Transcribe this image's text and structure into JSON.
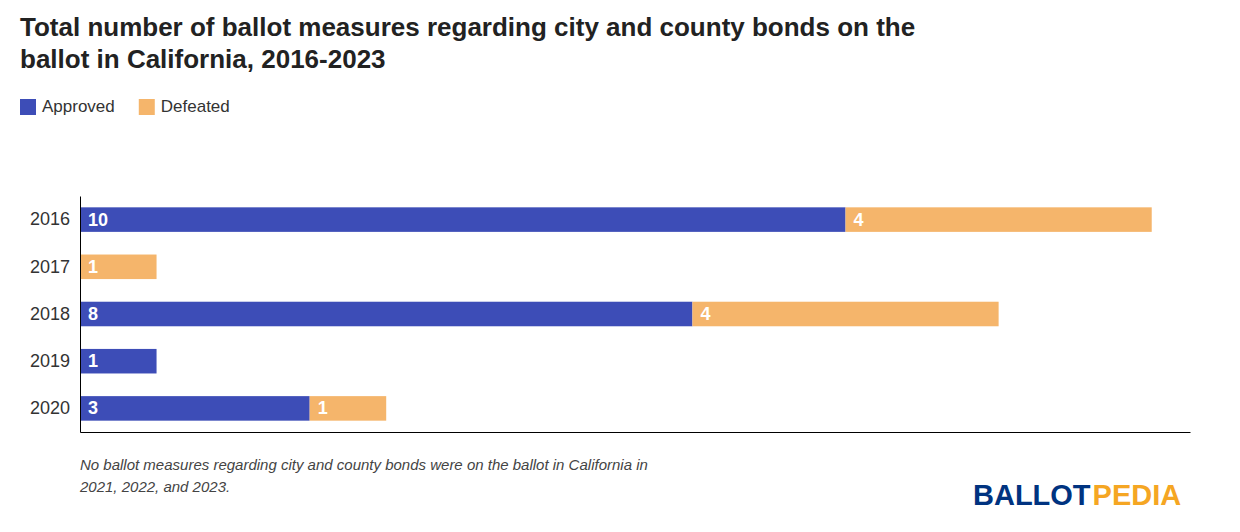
{
  "chart_data": {
    "type": "bar",
    "orientation": "horizontal",
    "stacked": true,
    "title": "Total number of ballot measures regarding city and county bonds on the\nballot in California, 2016-2023",
    "categories": [
      "2016",
      "2017",
      "2018",
      "2019",
      "2020"
    ],
    "series": [
      {
        "name": "Approved",
        "color": "#3d4db7",
        "values": [
          10,
          0,
          8,
          1,
          3
        ],
        "value_labels": [
          "10",
          null,
          "8",
          "1",
          "3"
        ]
      },
      {
        "name": "Defeated",
        "color": "#f5b56b",
        "values": [
          4,
          1,
          4,
          0,
          1
        ],
        "value_labels": [
          "4",
          "1",
          "4",
          null,
          "1"
        ]
      }
    ],
    "xlim": [
      0,
      14.5
    ],
    "tick_labels": "y",
    "grid": false,
    "legend": "top-left",
    "data_labels": true,
    "annotations": [
      {
        "text": "No ballot measures regarding city and county bonds were on the ballot in California in\n2021, 2022, and 2023."
      },
      {
        "text": "BALLOT",
        "color": "#003380"
      },
      {
        "text": "PEDIA",
        "color": "#f5a623"
      }
    ]
  }
}
